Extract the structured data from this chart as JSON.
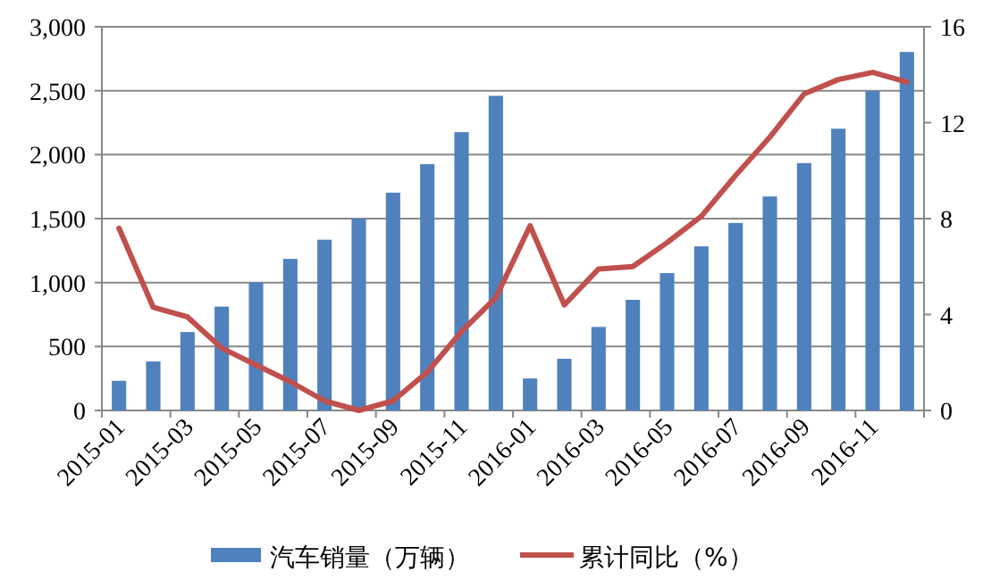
{
  "chart_data": {
    "type": "bar",
    "categories": [
      "2015-01",
      null,
      "2015-03",
      null,
      "2015-05",
      null,
      "2015-07",
      null,
      "2015-09",
      null,
      "2015-11",
      null,
      "2016-01",
      null,
      "2016-03",
      null,
      "2016-05",
      null,
      "2016-07",
      null,
      "2016-09",
      null,
      "2016-11",
      null
    ],
    "series": [
      {
        "name": "汽车销量（万辆）",
        "color": "#4f81bd",
        "values": [
          232,
          383,
          613,
          812,
          1000,
          1185,
          1335,
          1500,
          1703,
          1926,
          2176,
          2460,
          250,
          404,
          653,
          865,
          1074,
          1283,
          1466,
          1673,
          1934,
          2203,
          2497,
          2803
        ]
      },
      {
        "name": "累计同比（%）",
        "type": "line",
        "axis": "y2",
        "color": "#c0504d",
        "values": [
          7.6,
          4.3,
          3.9,
          2.6,
          1.9,
          1.2,
          0.4,
          0.0,
          0.4,
          1.6,
          3.3,
          4.7,
          7.7,
          4.4,
          5.9,
          6.0,
          7.0,
          8.1,
          9.8,
          11.4,
          13.2,
          13.8,
          14.1,
          13.7
        ]
      }
    ],
    "ylim": [
      0,
      3000
    ],
    "yticks": [
      0,
      500,
      {
        "value": 1000,
        "label": "1,000"
      },
      {
        "value": 1500,
        "label": "1,500"
      },
      {
        "value": 2000,
        "label": "2,000"
      },
      {
        "value": 2500,
        "label": "2,500"
      },
      {
        "value": 3000,
        "label": "3,000"
      }
    ],
    "y2lim": [
      0,
      16
    ],
    "y2ticks": [
      0,
      4,
      8,
      12,
      16
    ],
    "grid": "y",
    "legend": "bottom"
  }
}
